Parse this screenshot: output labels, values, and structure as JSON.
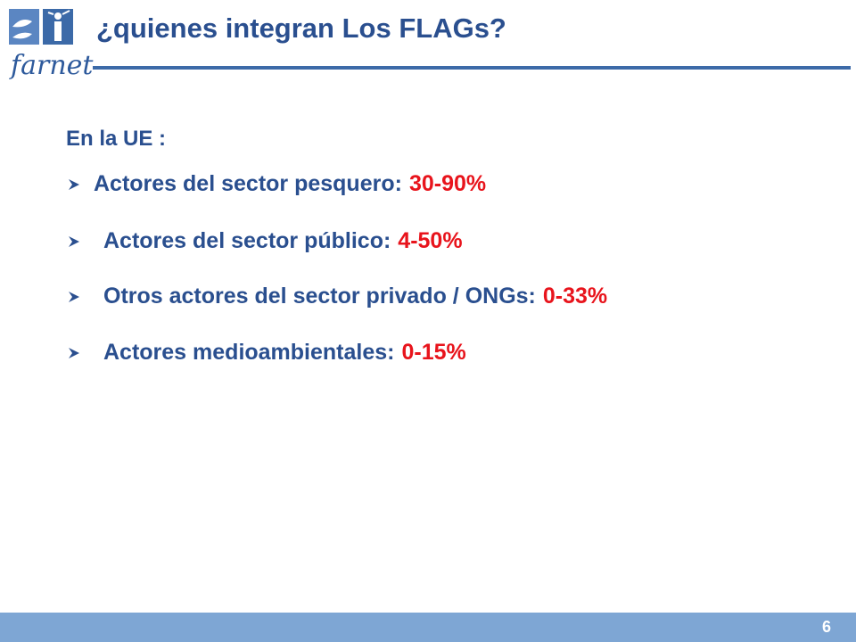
{
  "header": {
    "logo_text": "farnet",
    "title": "¿quienes integran Los FLAGs?"
  },
  "content": {
    "intro": "En la UE :",
    "bullets": [
      {
        "label": "Actores del sector pesquero:",
        "value": "30-90%"
      },
      {
        "label": "Actores del sector público:",
        "value": "4-50%"
      },
      {
        "label": "Otros actores del sector privado / ONGs:",
        "value": "0-33%"
      },
      {
        "label": "Actores medioambientales:",
        "value": "0-15%"
      }
    ]
  },
  "footer": {
    "page_number": "6"
  },
  "colors": {
    "text_blue": "#2a4f8f",
    "accent_red": "#e8141c",
    "footer_bar": "#7ea6d4"
  }
}
